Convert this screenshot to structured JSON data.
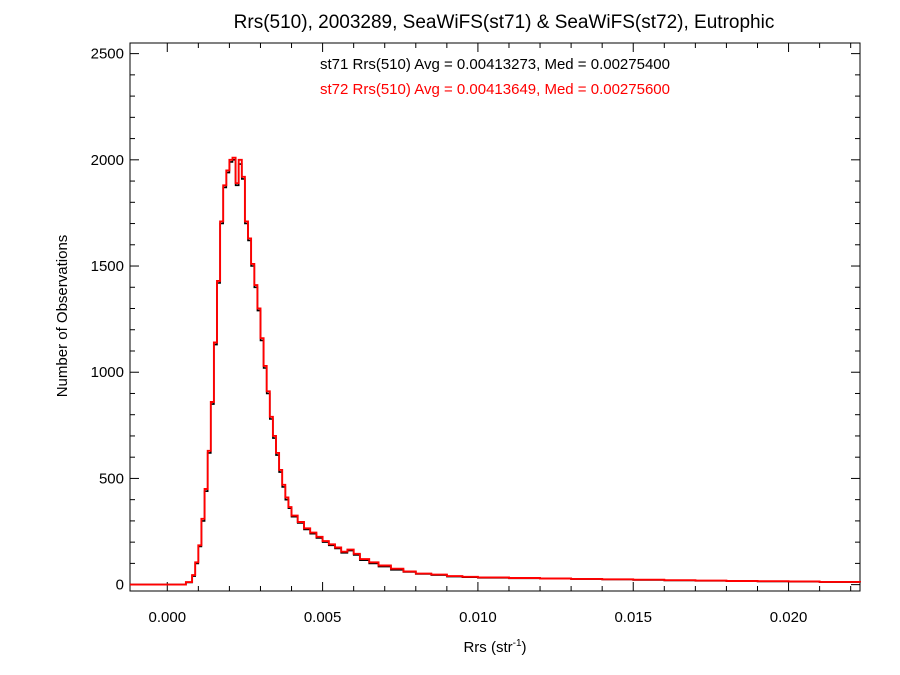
{
  "chart_data": {
    "type": "line",
    "title": "Rrs(510), 2003289, SeaWiFS(st71) & SeaWiFS(st72), Eutrophic",
    "xlabel": "Rrs (str",
    "xlabel_sup": "-1",
    "xlabel_close": ")",
    "ylabel": "Number of Observations",
    "xlim": [
      -0.0012,
      0.0223
    ],
    "ylim": [
      -30,
      2550
    ],
    "xticks": [
      0.0,
      0.005,
      0.01,
      0.015,
      0.02
    ],
    "xtick_labels": [
      "0.000",
      "0.005",
      "0.010",
      "0.015",
      "0.020"
    ],
    "yticks": [
      0,
      500,
      1000,
      1500,
      2000,
      2500
    ],
    "ytick_labels": [
      "0",
      "500",
      "1000",
      "1500",
      "2000",
      "2500"
    ],
    "grid": false,
    "annotations": [
      {
        "text": "st71 Rrs(510) Avg = 0.00413273, Med = 0.00275400",
        "color": "#000000"
      },
      {
        "text": "st72 Rrs(510) Avg = 0.00413649, Med = 0.00275600",
        "color": "#ff0000"
      }
    ],
    "series": [
      {
        "color": "#000000",
        "x": [
          -0.0012,
          0.0003,
          0.0006,
          0.0008,
          0.0009,
          0.001,
          0.0011,
          0.0012,
          0.0013,
          0.0014,
          0.0015,
          0.0016,
          0.0017,
          0.0018,
          0.0019,
          0.002,
          0.0021,
          0.0022,
          0.0023,
          0.0024,
          0.0025,
          0.0026,
          0.0027,
          0.0028,
          0.0029,
          0.003,
          0.0031,
          0.0032,
          0.0033,
          0.0034,
          0.0035,
          0.0036,
          0.0037,
          0.0038,
          0.0039,
          0.004,
          0.0042,
          0.0044,
          0.0046,
          0.0048,
          0.005,
          0.0052,
          0.0054,
          0.0056,
          0.0058,
          0.006,
          0.0062,
          0.0065,
          0.0068,
          0.0072,
          0.0076,
          0.008,
          0.0085,
          0.009,
          0.0095,
          0.01,
          0.011,
          0.012,
          0.013,
          0.014,
          0.015,
          0.016,
          0.017,
          0.018,
          0.019,
          0.02,
          0.021,
          0.0223
        ],
        "y": [
          0,
          0,
          10,
          40,
          100,
          180,
          300,
          440,
          620,
          850,
          1130,
          1420,
          1700,
          1870,
          1940,
          1990,
          2000,
          1880,
          1980,
          1910,
          1700,
          1620,
          1500,
          1400,
          1290,
          1150,
          1020,
          900,
          780,
          690,
          610,
          530,
          460,
          400,
          360,
          320,
          290,
          260,
          240,
          220,
          200,
          185,
          170,
          150,
          160,
          140,
          115,
          100,
          85,
          70,
          60,
          50,
          45,
          38,
          35,
          32,
          30,
          28,
          26,
          24,
          22,
          20,
          18,
          16,
          15,
          14,
          12,
          10
        ]
      },
      {
        "color": "#ff0000",
        "x": [
          -0.0012,
          0.0003,
          0.0006,
          0.0008,
          0.0009,
          0.001,
          0.0011,
          0.0012,
          0.0013,
          0.0014,
          0.0015,
          0.0016,
          0.0017,
          0.0018,
          0.0019,
          0.002,
          0.0021,
          0.0022,
          0.0023,
          0.0024,
          0.0025,
          0.0026,
          0.0027,
          0.0028,
          0.0029,
          0.003,
          0.0031,
          0.0032,
          0.0033,
          0.0034,
          0.0035,
          0.0036,
          0.0037,
          0.0038,
          0.0039,
          0.004,
          0.0042,
          0.0044,
          0.0046,
          0.0048,
          0.005,
          0.0052,
          0.0054,
          0.0056,
          0.0058,
          0.006,
          0.0062,
          0.0065,
          0.0068,
          0.0072,
          0.0076,
          0.008,
          0.0085,
          0.009,
          0.0095,
          0.01,
          0.011,
          0.012,
          0.013,
          0.014,
          0.015,
          0.016,
          0.017,
          0.018,
          0.019,
          0.02,
          0.021,
          0.0223
        ],
        "y": [
          0,
          0,
          12,
          45,
          105,
          185,
          310,
          450,
          630,
          860,
          1140,
          1430,
          1710,
          1880,
          1950,
          2000,
          2010,
          1890,
          2000,
          1920,
          1710,
          1630,
          1510,
          1410,
          1300,
          1160,
          1030,
          910,
          790,
          700,
          620,
          540,
          470,
          410,
          365,
          325,
          295,
          265,
          245,
          225,
          205,
          190,
          175,
          155,
          165,
          145,
          120,
          105,
          90,
          75,
          62,
          52,
          47,
          40,
          37,
          34,
          31,
          29,
          27,
          25,
          23,
          21,
          19,
          17,
          16,
          15,
          13,
          11
        ]
      }
    ]
  }
}
